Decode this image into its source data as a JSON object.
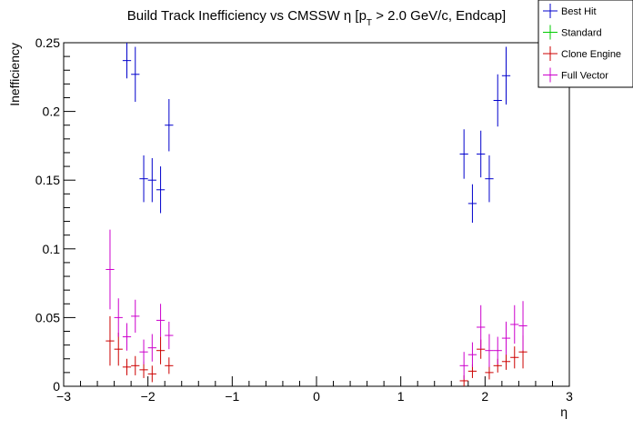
{
  "chart_data": {
    "type": "scatter",
    "title": "Build Track Inefficiency vs CMSSW η [p",
    "title_sub": "T",
    "title_rest": " > 2.0 GeV/c, Endcap]",
    "xlabel": "η",
    "ylabel": "Inefficiency",
    "xlim": [
      -3,
      3
    ],
    "ylim": [
      0,
      0.25
    ],
    "x_ticks": [
      "−3",
      "−2",
      "−1",
      "0",
      "1",
      "2",
      "3"
    ],
    "y_ticks": [
      "0",
      "0.05",
      "0.1",
      "0.15",
      "0.2",
      "0.25"
    ],
    "grid": false,
    "legend_position": "top-right",
    "bin_half_width": 0.05,
    "series": [
      {
        "name": "Best Hit",
        "color": "#0000cc",
        "points": [
          {
            "x": -2.25,
            "y": 0.237,
            "err": 0.013
          },
          {
            "x": -2.15,
            "y": 0.227,
            "err": 0.02
          },
          {
            "x": -2.05,
            "y": 0.151,
            "err": 0.017
          },
          {
            "x": -1.95,
            "y": 0.15,
            "err": 0.016
          },
          {
            "x": -1.85,
            "y": 0.143,
            "err": 0.017
          },
          {
            "x": -1.75,
            "y": 0.19,
            "err": 0.019
          },
          {
            "x": 1.75,
            "y": 0.169,
            "err": 0.018
          },
          {
            "x": 1.85,
            "y": 0.133,
            "err": 0.014
          },
          {
            "x": 1.95,
            "y": 0.169,
            "err": 0.017
          },
          {
            "x": 2.05,
            "y": 0.151,
            "err": 0.017
          },
          {
            "x": 2.15,
            "y": 0.208,
            "err": 0.019
          },
          {
            "x": 2.25,
            "y": 0.226,
            "err": 0.021
          }
        ]
      },
      {
        "name": "Standard",
        "color": "#00cc00",
        "points": []
      },
      {
        "name": "Clone Engine",
        "color": "#cc0000",
        "points": [
          {
            "x": -2.45,
            "y": 0.033,
            "err": 0.018
          },
          {
            "x": -2.35,
            "y": 0.027,
            "err": 0.012
          },
          {
            "x": -2.25,
            "y": 0.014,
            "err": 0.006
          },
          {
            "x": -2.15,
            "y": 0.015,
            "err": 0.007
          },
          {
            "x": -2.05,
            "y": 0.012,
            "err": 0.006
          },
          {
            "x": -1.95,
            "y": 0.009,
            "err": 0.006
          },
          {
            "x": -1.85,
            "y": 0.026,
            "err": 0.01
          },
          {
            "x": -1.75,
            "y": 0.015,
            "err": 0.006
          },
          {
            "x": 1.75,
            "y": 0.004,
            "err": 0.004
          },
          {
            "x": 1.85,
            "y": 0.011,
            "err": 0.005
          },
          {
            "x": 1.95,
            "y": 0.027,
            "err": 0.007
          },
          {
            "x": 2.05,
            "y": 0.01,
            "err": 0.005
          },
          {
            "x": 2.15,
            "y": 0.015,
            "err": 0.005
          },
          {
            "x": 2.25,
            "y": 0.018,
            "err": 0.006
          },
          {
            "x": 2.35,
            "y": 0.021,
            "err": 0.008
          },
          {
            "x": 2.45,
            "y": 0.025,
            "err": 0.012
          }
        ]
      },
      {
        "name": "Full Vector",
        "color": "#cc00cc",
        "points": [
          {
            "x": -2.45,
            "y": 0.085,
            "err": 0.029
          },
          {
            "x": -2.35,
            "y": 0.05,
            "err": 0.014
          },
          {
            "x": -2.25,
            "y": 0.036,
            "err": 0.01
          },
          {
            "x": -2.15,
            "y": 0.051,
            "err": 0.012
          },
          {
            "x": -2.05,
            "y": 0.025,
            "err": 0.009
          },
          {
            "x": -1.95,
            "y": 0.028,
            "err": 0.01
          },
          {
            "x": -1.85,
            "y": 0.048,
            "err": 0.012
          },
          {
            "x": -1.75,
            "y": 0.037,
            "err": 0.01
          },
          {
            "x": 1.75,
            "y": 0.015,
            "err": 0.01
          },
          {
            "x": 1.85,
            "y": 0.023,
            "err": 0.009
          },
          {
            "x": 1.95,
            "y": 0.043,
            "err": 0.016
          },
          {
            "x": 2.05,
            "y": 0.026,
            "err": 0.012
          },
          {
            "x": 2.15,
            "y": 0.026,
            "err": 0.01
          },
          {
            "x": 2.25,
            "y": 0.035,
            "err": 0.012
          },
          {
            "x": 2.35,
            "y": 0.045,
            "err": 0.014
          },
          {
            "x": 2.45,
            "y": 0.044,
            "err": 0.018
          }
        ]
      }
    ]
  }
}
